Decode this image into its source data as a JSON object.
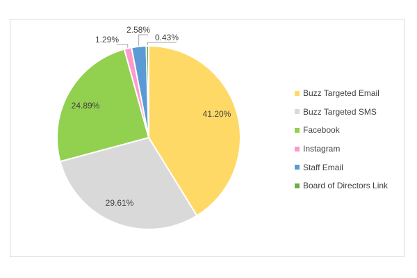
{
  "chart_data": {
    "type": "pie",
    "categories": [
      "Buzz Targeted Email",
      "Buzz Targeted SMS",
      "Facebook",
      "Instagram",
      "Staff Email",
      "Board of Directors Link"
    ],
    "values": [
      41.2,
      29.61,
      24.89,
      1.29,
      2.58,
      0.43
    ],
    "value_labels": [
      "41.20%",
      "29.61%",
      "24.89%",
      "1.29%",
      "2.58%",
      "0.43%"
    ],
    "colors": [
      "#FFD966",
      "#D9D9D9",
      "#92D050",
      "#FF99CC",
      "#5B9BD5",
      "#70AD47"
    ],
    "legend_position": "right",
    "start": "top, clockwise"
  }
}
